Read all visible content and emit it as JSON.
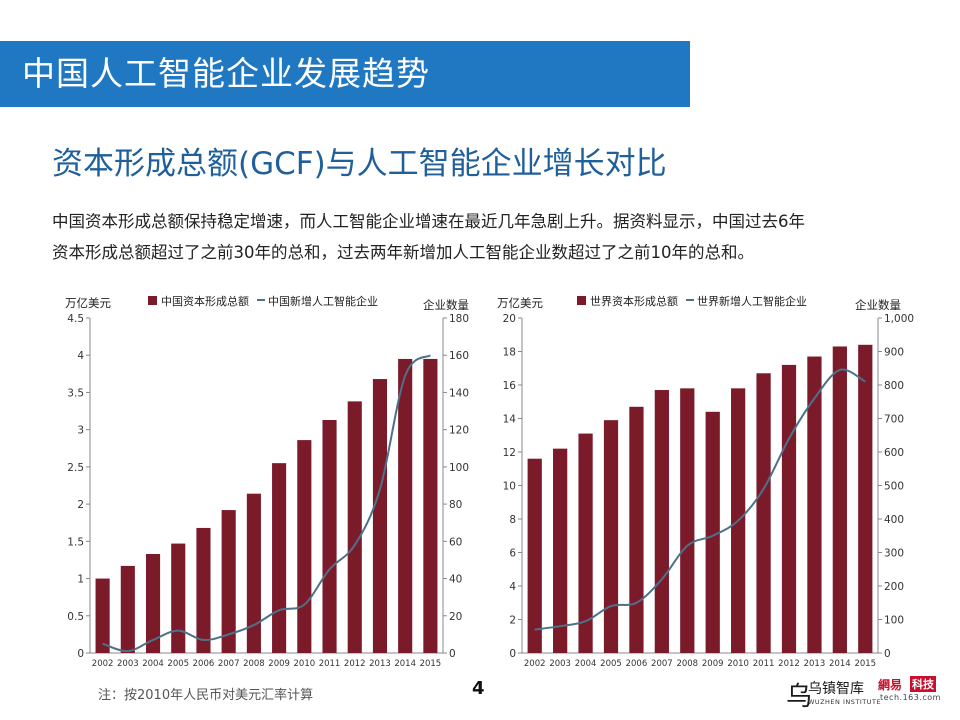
{
  "header": {
    "title": "中国人工智能企业发展趋势"
  },
  "section": {
    "subtitle": "资本形成总额(GCF)与人工智能企业增长对比"
  },
  "body": {
    "line1": "中国资本形成总额保持稳定增速，而人工智能企业增速在最近几年急剧上升。据资料显示，中国过去6年",
    "line2": "资本形成总额超过了之前30年的总和，过去两年新增加人工智能企业数超过了之前10年的总和。"
  },
  "colors": {
    "bar": "#7b1b2a",
    "line": "#4d7188",
    "title_bg": "#1f78c1",
    "subtitle": "#1f5f9a"
  },
  "chart_data": [
    {
      "type": "bar",
      "combo_line": true,
      "categories": [
        "2002",
        "2003",
        "2004",
        "2005",
        "2006",
        "2007",
        "2008",
        "2009",
        "2010",
        "2011",
        "2012",
        "2013",
        "2014",
        "2015"
      ],
      "series": [
        {
          "name": "中国资本形成总额",
          "type": "bar",
          "axis": "left",
          "values": [
            1.0,
            1.17,
            1.33,
            1.47,
            1.68,
            1.92,
            2.14,
            2.55,
            2.86,
            3.13,
            3.38,
            3.68,
            3.95,
            3.95
          ]
        },
        {
          "name": "中国新增人工智能企业",
          "type": "line",
          "axis": "right",
          "values": [
            5,
            1,
            7,
            12,
            7,
            10,
            15,
            23,
            26,
            45,
            58,
            88,
            149,
            160
          ]
        }
      ],
      "ylabel": "万亿美元",
      "ylabel_right": "企业数量",
      "ylim": [
        0,
        4.5
      ],
      "y_ticks": [
        "4.5",
        "4",
        "3.5",
        "3",
        "2.5",
        "2",
        "1.5",
        "1",
        "0.5",
        "0"
      ],
      "ylim_right": [
        0,
        180
      ],
      "y_ticks_right": [
        "180",
        "160",
        "140",
        "120",
        "100",
        "80",
        "60",
        "40",
        "20",
        "0"
      ],
      "legend": "top"
    },
    {
      "type": "bar",
      "combo_line": true,
      "categories": [
        "2002",
        "2003",
        "2004",
        "2005",
        "2006",
        "2007",
        "2008",
        "2009",
        "2010",
        "2011",
        "2012",
        "2013",
        "2014",
        "2015"
      ],
      "series": [
        {
          "name": "世界资本形成总额",
          "type": "bar",
          "axis": "left",
          "values": [
            11.6,
            12.2,
            13.1,
            13.9,
            14.7,
            15.7,
            15.8,
            14.4,
            15.8,
            16.7,
            17.2,
            17.7,
            18.3,
            18.4
          ]
        },
        {
          "name": "世界新增人工智能企业",
          "type": "line",
          "axis": "right",
          "values": [
            70,
            80,
            95,
            140,
            150,
            220,
            320,
            350,
            395,
            490,
            640,
            760,
            845,
            810
          ]
        }
      ],
      "ylabel": "万亿美元",
      "ylabel_right": "企业数量",
      "ylim": [
        0,
        20
      ],
      "y_ticks": [
        "20",
        "18",
        "16",
        "14",
        "12",
        "10",
        "8",
        "6",
        "4",
        "2",
        "0"
      ],
      "ylim_right": [
        0,
        1000
      ],
      "y_ticks_right": [
        "1,000",
        "900",
        "800",
        "700",
        "600",
        "500",
        "400",
        "300",
        "200",
        "100",
        "0"
      ],
      "legend": "top"
    }
  ],
  "footer": {
    "note": "注：按2010年人民币对美元汇率计算",
    "page": "4",
    "logo_mark": "乌",
    "logo_cn": "乌镇智库",
    "logo_en": "WUZHEN INSTITUTE",
    "logo2_a": "網易",
    "logo2_b": "科技",
    "logo2_c": "tech.163.com"
  }
}
